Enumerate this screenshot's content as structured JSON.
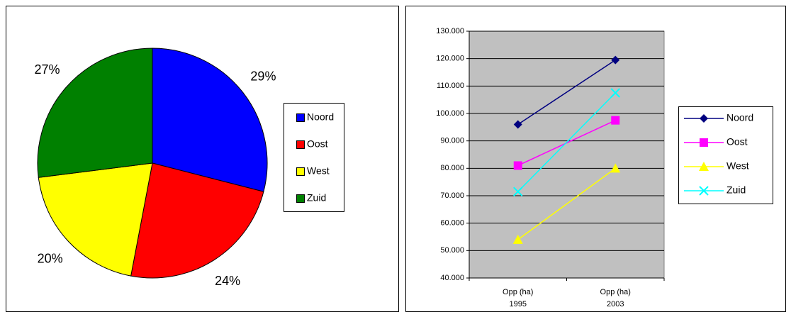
{
  "chart_data": [
    {
      "type": "pie",
      "categories": [
        "Noord",
        "Oost",
        "West",
        "Zuid"
      ],
      "values": [
        29,
        24,
        20,
        27
      ],
      "value_labels": [
        "29%",
        "24%",
        "20%",
        "27%"
      ],
      "colors": [
        "#0000ff",
        "#ff0000",
        "#ffff00",
        "#008000"
      ],
      "legend": "right"
    },
    {
      "type": "line",
      "categories": [
        "Opp (ha)\n1995",
        "Opp (ha)\n2003"
      ],
      "series": [
        {
          "name": "Noord",
          "color": "#000080",
          "marker": "diamond",
          "values": [
            96000,
            119500
          ]
        },
        {
          "name": "Oost",
          "color": "#ff00ff",
          "marker": "square",
          "values": [
            81000,
            97500
          ]
        },
        {
          "name": "West",
          "color": "#ffff00",
          "marker": "triangle",
          "values": [
            54000,
            80000
          ]
        },
        {
          "name": "Zuid",
          "color": "#00ffff",
          "marker": "x",
          "values": [
            71500,
            107500
          ]
        }
      ],
      "ylim": [
        40000,
        130000
      ],
      "yticks": [
        {
          "value": 40000,
          "label": "40.000"
        },
        {
          "value": 50000,
          "label": "50.000"
        },
        {
          "value": 60000,
          "label": "60.000"
        },
        {
          "value": 70000,
          "label": "70.000"
        },
        {
          "value": 80000,
          "label": "80.000"
        },
        {
          "value": 90000,
          "label": "90.000"
        },
        {
          "value": 100000,
          "label": "100.000"
        },
        {
          "value": 110000,
          "label": "110.000"
        },
        {
          "value": 120000,
          "label": "120.000"
        },
        {
          "value": 130000,
          "label": "130.000"
        }
      ],
      "grid": true,
      "legend": "right"
    }
  ]
}
